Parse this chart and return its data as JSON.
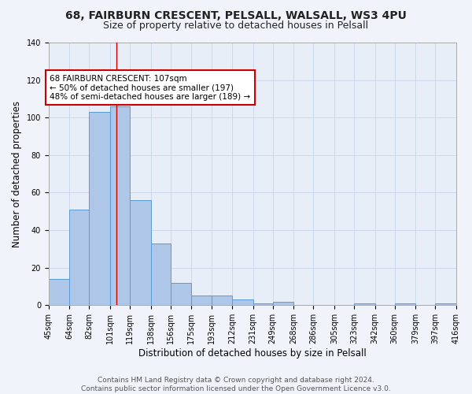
{
  "title1": "68, FAIRBURN CRESCENT, PELSALL, WALSALL, WS3 4PU",
  "title2": "Size of property relative to detached houses in Pelsall",
  "xlabel": "Distribution of detached houses by size in Pelsall",
  "ylabel": "Number of detached properties",
  "bar_values": [
    14,
    51,
    103,
    106,
    56,
    33,
    12,
    5,
    5,
    3,
    1,
    2,
    0,
    0,
    0,
    1,
    0,
    1,
    0,
    1
  ],
  "bin_edges": [
    45,
    64,
    82,
    101,
    119,
    138,
    156,
    175,
    193,
    212,
    231,
    249,
    268,
    286,
    305,
    323,
    342,
    360,
    379,
    397,
    416
  ],
  "tick_labels": [
    "45sqm",
    "64sqm",
    "82sqm",
    "101sqm",
    "119sqm",
    "138sqm",
    "156sqm",
    "175sqm",
    "193sqm",
    "212sqm",
    "231sqm",
    "249sqm",
    "268sqm",
    "286sqm",
    "305sqm",
    "323sqm",
    "342sqm",
    "360sqm",
    "379sqm",
    "397sqm",
    "416sqm"
  ],
  "bar_color": "#aec6e8",
  "bar_edge_color": "#5b9bd5",
  "grid_color": "#c8d4e8",
  "background_color": "#e8eef8",
  "fig_background_color": "#f0f4fa",
  "vline_x": 107,
  "vline_color": "#cc0000",
  "annotation_text": "68 FAIRBURN CRESCENT: 107sqm\n← 50% of detached houses are smaller (197)\n48% of semi-detached houses are larger (189) →",
  "annotation_box_color": "#ffffff",
  "annotation_border_color": "#cc0000",
  "ylim": [
    0,
    140
  ],
  "yticks": [
    0,
    20,
    40,
    60,
    80,
    100,
    120,
    140
  ],
  "footer_text": "Contains HM Land Registry data © Crown copyright and database right 2024.\nContains public sector information licensed under the Open Government Licence v3.0.",
  "title1_fontsize": 10,
  "title2_fontsize": 9,
  "xlabel_fontsize": 8.5,
  "ylabel_fontsize": 8.5,
  "tick_fontsize": 7,
  "annotation_fontsize": 7.5,
  "footer_fontsize": 6.5
}
